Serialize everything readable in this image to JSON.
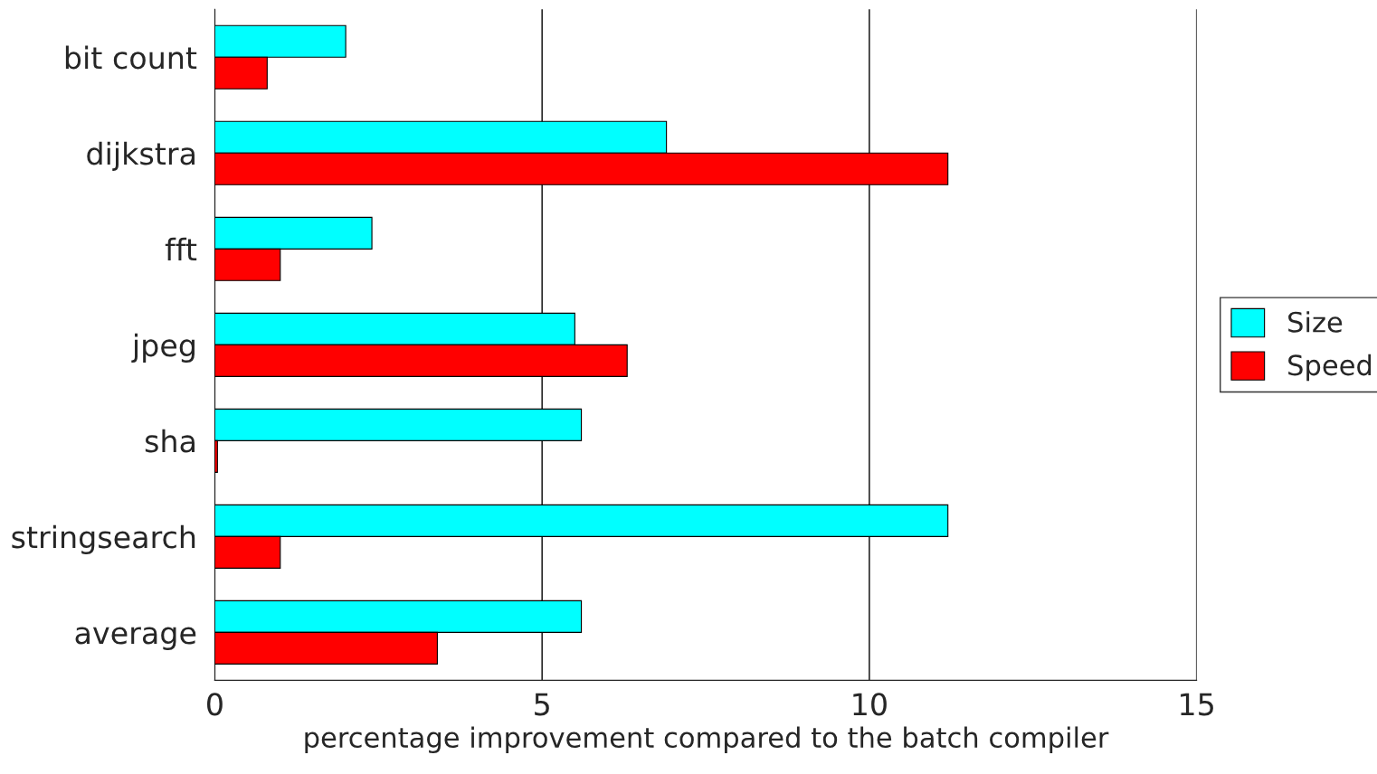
{
  "chart_data": {
    "type": "bar",
    "orientation": "horizontal",
    "xlabel": "percentage improvement compared to the batch compiler",
    "categories": [
      "bit count",
      "dijkstra",
      "fft",
      "jpeg",
      "sha",
      "stringsearch",
      "average"
    ],
    "series": [
      {
        "name": "Size",
        "color": "#00ffff",
        "values": [
          2.0,
          6.9,
          2.4,
          5.5,
          5.6,
          11.2,
          5.6
        ]
      },
      {
        "name": "Speed",
        "color": "#ff0000",
        "values": [
          0.8,
          11.2,
          1.0,
          6.3,
          0.04,
          1.0,
          3.4
        ]
      }
    ],
    "xlim": [
      0,
      15
    ],
    "xticks": [
      0,
      5,
      10,
      15
    ],
    "grid": "x",
    "legend": "right"
  }
}
